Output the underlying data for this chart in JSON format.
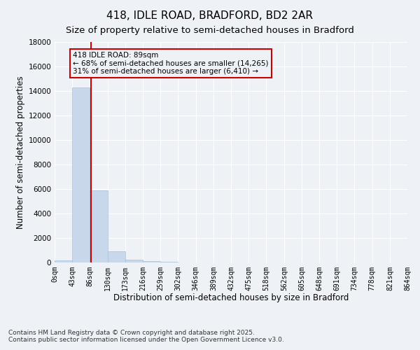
{
  "title_line1": "418, IDLE ROAD, BRADFORD, BD2 2AR",
  "title_line2": "Size of property relative to semi-detached houses in Bradford",
  "xlabel": "Distribution of semi-detached houses by size in Bradford",
  "ylabel": "Number of semi-detached properties",
  "footnote1": "Contains HM Land Registry data © Crown copyright and database right 2025.",
  "footnote2": "Contains public sector information licensed under the Open Government Licence v3.0.",
  "annotation_line1": "418 IDLE ROAD: 89sqm",
  "annotation_line2": "← 68% of semi-detached houses are smaller (14,265)",
  "annotation_line3": "31% of semi-detached houses are larger (6,410) →",
  "property_size": 89,
  "bin_edges": [
    0,
    43,
    86,
    130,
    173,
    216,
    259,
    302,
    346,
    389,
    432,
    475,
    518,
    562,
    605,
    648,
    691,
    734,
    778,
    821,
    864
  ],
  "bar_values": [
    200,
    14265,
    5900,
    900,
    250,
    100,
    30,
    0,
    0,
    0,
    0,
    0,
    0,
    0,
    0,
    0,
    0,
    0,
    0,
    0
  ],
  "bar_color": "#c8d8ea",
  "bar_edge_color": "#a8c0d8",
  "red_line_color": "#cc0000",
  "annotation_box_color": "#cc0000",
  "background_color": "#eef2f7",
  "plot_bg_color": "#eef2f7",
  "ylim": [
    0,
    18000
  ],
  "yticks": [
    0,
    2000,
    4000,
    6000,
    8000,
    10000,
    12000,
    14000,
    16000,
    18000
  ],
  "grid_color": "#ffffff",
  "title_fontsize": 11,
  "subtitle_fontsize": 9.5,
  "axis_label_fontsize": 8.5,
  "tick_fontsize": 7.5,
  "annotation_fontsize": 7.5,
  "footnote_fontsize": 6.5
}
